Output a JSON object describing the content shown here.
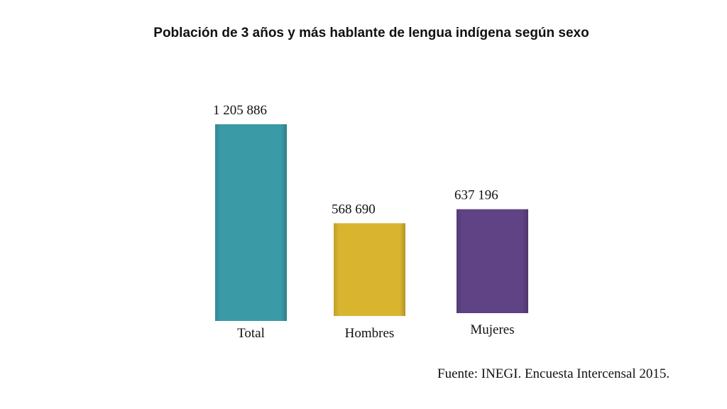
{
  "chart_data": {
    "type": "bar",
    "title": "Población de 3 años y más hablante de lengua indígena según sexo",
    "categories": [
      "Total",
      "Hombres",
      "Mujeres"
    ],
    "values": [
      1205886,
      568690,
      637196
    ],
    "value_labels": [
      "1 205 886",
      "568 690",
      "637 196"
    ],
    "colors": [
      "#3a9aa6",
      "#d9b52f",
      "#5f4385"
    ],
    "xlabel": "",
    "ylabel": "",
    "ylim": [
      0,
      1205886
    ],
    "grid": false,
    "legend": "none"
  },
  "source": "Fuente: INEGI. Encuesta Intercensal 2015."
}
